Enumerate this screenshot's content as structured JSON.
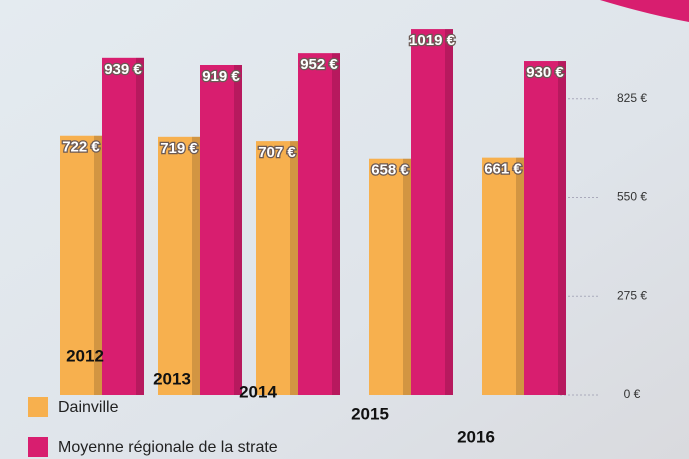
{
  "chart_data": {
    "type": "bar",
    "categories": [
      "2012",
      "2013",
      "2014",
      "2015",
      "2016"
    ],
    "series": [
      {
        "name": "Dainville",
        "color": "#f7b04e",
        "values": [
          722,
          719,
          707,
          658,
          661
        ],
        "value_labels": [
          "722 €",
          "719 €",
          "707 €",
          "658 €",
          "661 €"
        ]
      },
      {
        "name": "Moyenne régionale de la strate",
        "color": "#d81e6f",
        "values": [
          939,
          919,
          952,
          1019,
          930
        ],
        "value_labels": [
          "939 €",
          "919 €",
          "952 €",
          "1019 €",
          "930 €"
        ]
      }
    ],
    "ylim": [
      0,
      1100
    ],
    "yticks": [
      {
        "value": 0,
        "label": "0 €"
      },
      {
        "value": 275,
        "label": "275 €"
      },
      {
        "value": 550,
        "label": "550 €"
      },
      {
        "value": 825,
        "label": "825 €"
      }
    ],
    "grid": true
  }
}
